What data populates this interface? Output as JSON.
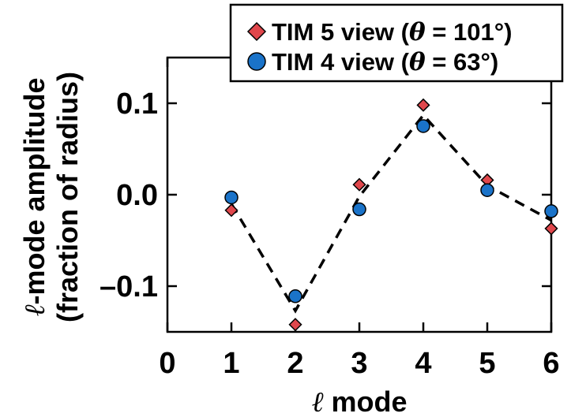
{
  "chart_data": {
    "type": "scatter",
    "x_ticks": [
      0,
      1,
      2,
      3,
      4,
      5,
      6
    ],
    "y_ticks": [
      {
        "value": 0.1,
        "label": "0.1"
      },
      {
        "value": 0.0,
        "label": "0.0"
      },
      {
        "value": -0.1,
        "label": "–0.1"
      }
    ],
    "xlim": [
      0,
      6
    ],
    "ylim": [
      -0.15,
      0.15
    ],
    "xlabel": {
      "symbol": "ℓ",
      "text": " mode"
    },
    "ylabel": {
      "line1_symbol": "ℓ",
      "line1_text": "-mode amplitude",
      "line2": "(fraction of radius)"
    },
    "legend_position": "top-right",
    "series": [
      {
        "name": "TIM 5 view (θ = 101°)",
        "legend_prefix": "TIM 5 view (",
        "legend_theta": "θ",
        "legend_suffix": " = 101°)",
        "marker": "diamond",
        "color": "#e0474c",
        "x": [
          1,
          2,
          3,
          4,
          5,
          6
        ],
        "y": [
          -0.017,
          -0.142,
          0.011,
          0.098,
          0.016,
          -0.037
        ]
      },
      {
        "name": "TIM 4 view (θ = 63°)",
        "legend_prefix": "TIM 4 view (",
        "legend_theta": "θ",
        "legend_suffix": " = 63°)",
        "marker": "circle",
        "color": "#1a73c9",
        "x": [
          1,
          2,
          3,
          4,
          5,
          6
        ],
        "y": [
          -0.003,
          -0.111,
          -0.016,
          0.075,
          0.005,
          -0.018
        ]
      }
    ],
    "fit_line": {
      "style": "dashed",
      "x": [
        1,
        2,
        3,
        4,
        5,
        6
      ],
      "y": [
        -0.01,
        -0.127,
        -0.002,
        0.087,
        0.01,
        -0.028
      ]
    }
  }
}
